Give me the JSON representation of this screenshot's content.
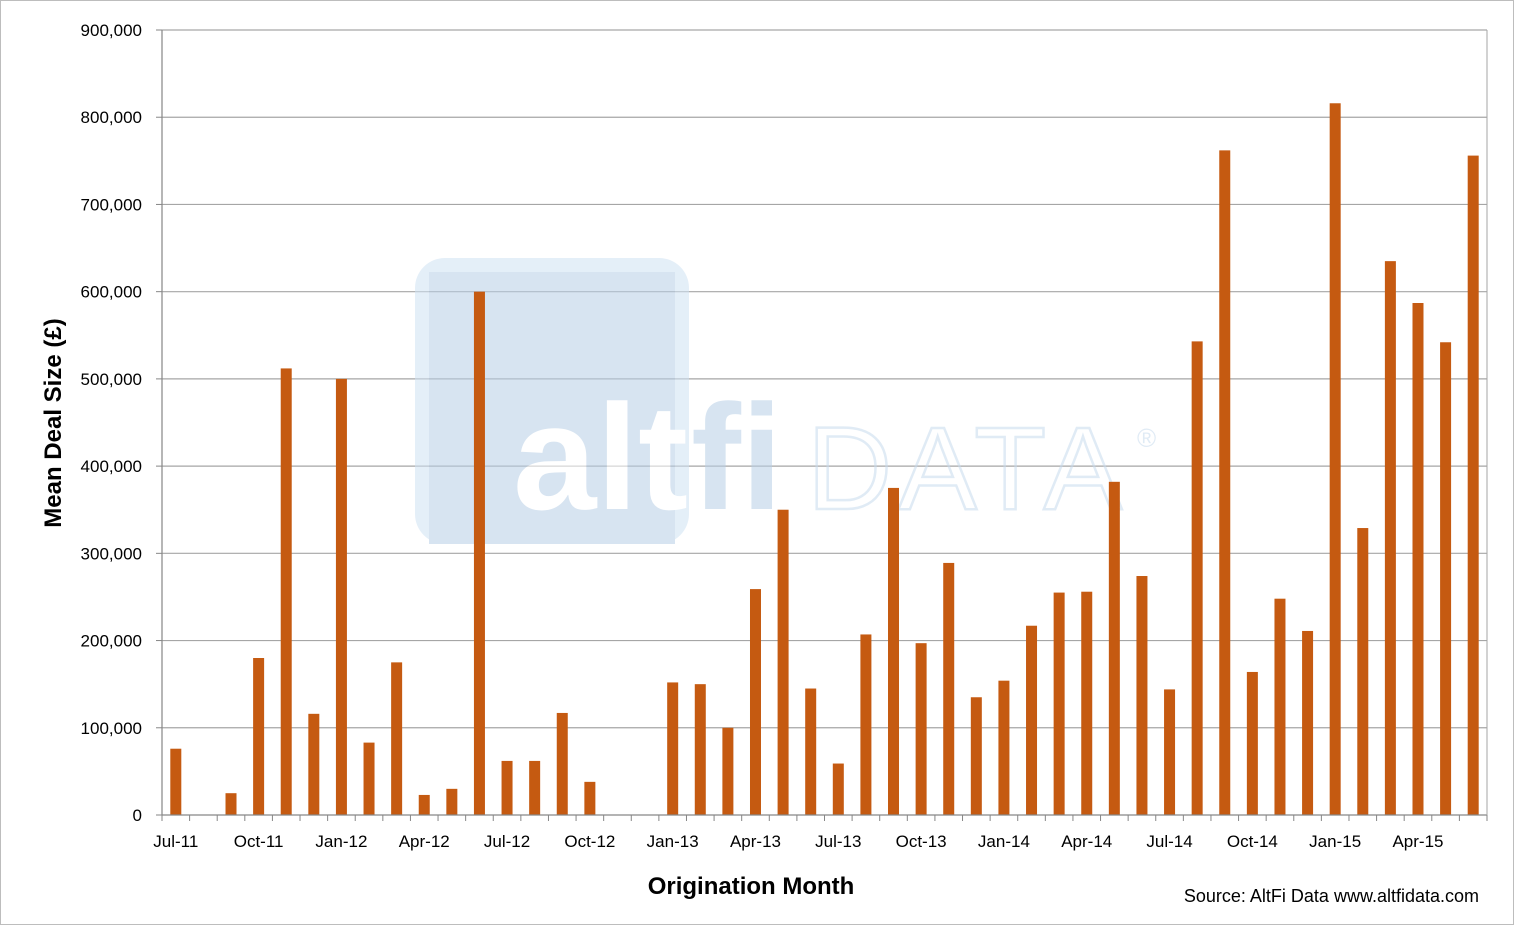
{
  "chart_data": {
    "type": "bar",
    "xlabel": "Origination Month",
    "ylabel": "Mean Deal Size (£)",
    "ylim": [
      0,
      900000
    ],
    "yticks": [
      "0",
      "100,000",
      "200,000",
      "300,000",
      "400,000",
      "500,000",
      "600,000",
      "700,000",
      "800,000",
      "900,000"
    ],
    "grid": true,
    "bar_color": "#C55A11",
    "categories": [
      "Jul-11",
      "Aug-11",
      "Sep-11",
      "Oct-11",
      "Nov-11",
      "Dec-11",
      "Jan-12",
      "Feb-12",
      "Mar-12",
      "Apr-12",
      "May-12",
      "Jun-12",
      "Jul-12",
      "Aug-12",
      "Sep-12",
      "Oct-12",
      "Nov-12",
      "Dec-12",
      "Jan-13",
      "Feb-13",
      "Mar-13",
      "Apr-13",
      "May-13",
      "Jun-13",
      "Jul-13",
      "Aug-13",
      "Sep-13",
      "Oct-13",
      "Nov-13",
      "Dec-13",
      "Jan-14",
      "Feb-14",
      "Mar-14",
      "Apr-14",
      "May-14",
      "Jun-14",
      "Jul-14",
      "Aug-14",
      "Sep-14",
      "Oct-14",
      "Nov-14",
      "Dec-14",
      "Jan-15",
      "Feb-15",
      "Mar-15",
      "Apr-15",
      "May-15",
      "Jun-15"
    ],
    "tick_labels": [
      "Jul-11",
      "Oct-11",
      "Jan-12",
      "Apr-12",
      "Jul-12",
      "Oct-12",
      "Jan-13",
      "Apr-13",
      "Jul-13",
      "Oct-13",
      "Jan-14",
      "Apr-14",
      "Jul-14",
      "Oct-14",
      "Jan-15",
      "Apr-15"
    ],
    "series": [
      {
        "values": [
          76000,
          0,
          25000,
          180000,
          512000,
          116000,
          500000,
          83000,
          175000,
          23000,
          30000,
          600000,
          62000,
          62000,
          117000,
          38000,
          0,
          0,
          152000,
          150000,
          100000,
          259000,
          350000,
          145000,
          59000,
          207000,
          375000,
          197000,
          289000,
          135000,
          154000,
          217000,
          255000,
          256000,
          382000,
          274000,
          144000,
          543000,
          762000,
          164000,
          248000,
          211000,
          816000,
          329000,
          635000,
          587000,
          542000,
          756000
        ]
      }
    ],
    "source": "Source: AltFi Data www.altfidata.com"
  },
  "watermark": {
    "alt": "alt",
    "fi": "fi",
    "data": "DATA",
    "registered": "®"
  }
}
